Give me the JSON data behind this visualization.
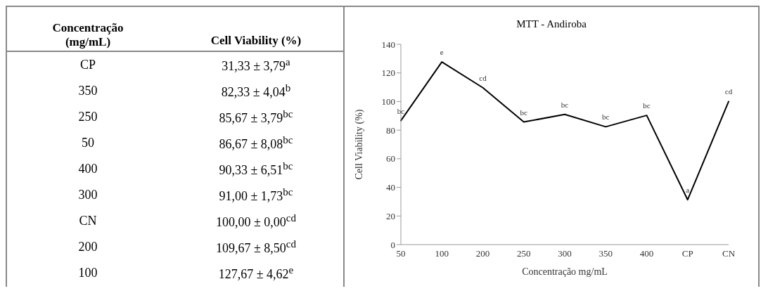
{
  "chart_data": [
    {
      "type": "other",
      "annotations": [
        "Concentração (mg/mL)",
        "Cell Viability (%)"
      ],
      "categories": [
        "CP",
        "350",
        "250",
        "50",
        "400",
        "300",
        "CN",
        "200",
        "100"
      ],
      "value_labels": [
        "31,33 ± 3,79$^{a}$",
        "82,33 ± 4,04$^{b}$",
        "85,67 ± 3,79$^{bc}$",
        "86,67 ± 8,08$^{bc}$",
        "90,33 ± 6,51$^{bc}$",
        "91,00 ± 1,73$^{bc}$",
        "100,00 ± 0,00$^{cd}$",
        "109,67 ± 8,50$^{cd}$",
        "127,67 ± 4,62$^{e}$"
      ]
    },
    {
      "type": "line",
      "title": "MTT - Andiroba",
      "xlabel": "Concentração mg/mL",
      "ylabel": "Cell Viability (%)",
      "categories": [
        "50",
        "100",
        "200",
        "250",
        "300",
        "350",
        "400",
        "CP",
        "CN"
      ],
      "values": [
        86.67,
        127.67,
        109.67,
        85.67,
        91.0,
        82.33,
        90.33,
        31.33,
        100.0
      ],
      "value_labels": [
        "bc",
        "e",
        "cd",
        "bc",
        "bc",
        "bc",
        "bc",
        "a",
        "cd"
      ],
      "color": "#000000",
      "marker": "none",
      "line_style": "solid",
      "ylim": [
        0,
        140
      ],
      "yticks": [
        0,
        20,
        40,
        60,
        80,
        100,
        120,
        140
      ],
      "grid": false
    }
  ]
}
